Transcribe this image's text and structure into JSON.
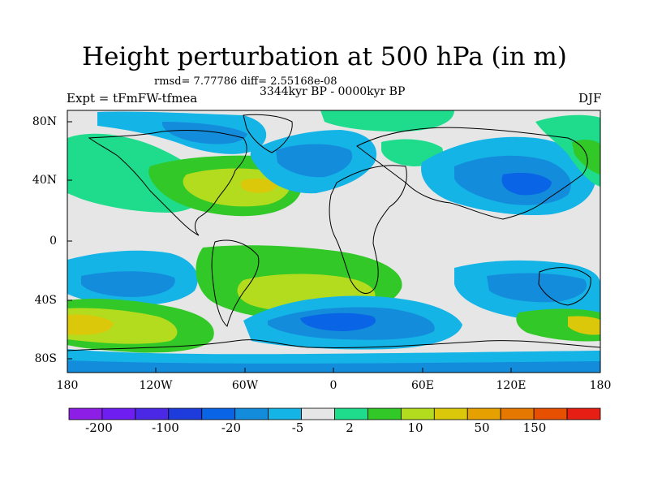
{
  "title": "Height perturbation at 500 hPa (in m)",
  "stats_line": "rmsd= 7.77786 diff= 2.55168e-08",
  "period": "3344kyr BP - 0000kyr BP",
  "experiment": "Expt = tFmFW-tfmea",
  "season": "DJF",
  "map": {
    "projection": "cylindrical-equidistant",
    "lon_range": [
      -180,
      180
    ],
    "lat_range": [
      -90,
      90
    ],
    "y_ticks": [
      "80N",
      "40N",
      "0",
      "40S",
      "80S"
    ],
    "x_ticks": [
      "180",
      "120W",
      "60W",
      "0",
      "60E",
      "120E",
      "180"
    ]
  },
  "colorbar": {
    "colors": [
      "#8c1ee6",
      "#6e1ef0",
      "#4b28e6",
      "#1e3cdc",
      "#0a64e6",
      "#148cdc",
      "#14b4e6",
      "#e6e6e6",
      "#1edc8c",
      "#32c828",
      "#b4dc1e",
      "#dcc80a",
      "#e6a000",
      "#e67800",
      "#e65000",
      "#e61e14"
    ],
    "labels": [
      "-200",
      "-100",
      "-20",
      "-5",
      "2",
      "10",
      "50",
      "150"
    ]
  },
  "field_legend": {
    "blue_medium": "#0a64e6",
    "blue_light": "#148cdc",
    "cyan": "#14b4e6",
    "neutral": "#e6e6e6",
    "teal": "#1edc8c",
    "green": "#32c828",
    "yellow_green": "#b4dc1e",
    "yellow": "#dcc80a",
    "orange": "#e6a000"
  }
}
